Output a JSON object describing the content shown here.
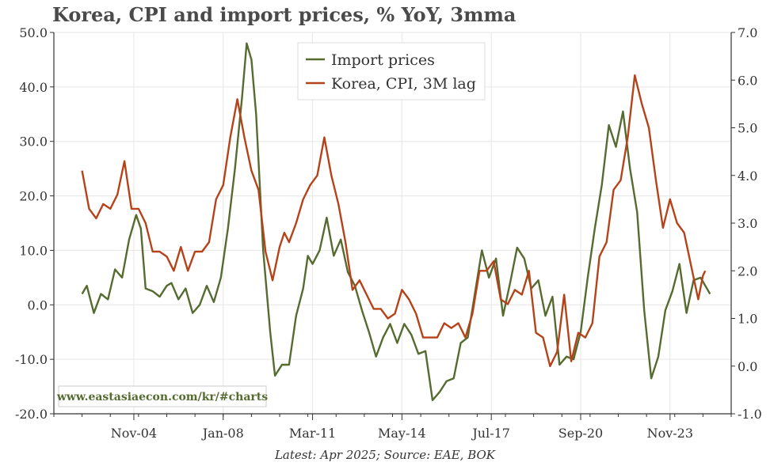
{
  "header": {
    "title": "Korea, CPI and import prices, % YoY, 3mma"
  },
  "footer": {
    "source": "Latest: Apr 2025; Source: EAE, BOK"
  },
  "watermark": {
    "text": "www.eastasiaecon.com/kr/#charts"
  },
  "colors": {
    "import": "#556b2f",
    "cpi": "#b5431a",
    "grid": "#e6e6e6",
    "axis": "#333333"
  },
  "chart_data": {
    "type": "line",
    "title": "Korea, CPI and import prices, % YoY, 3mma",
    "x_ticks": [
      "Nov-04",
      "Jan-08",
      "Mar-11",
      "May-14",
      "Jul-17",
      "Sep-20",
      "Nov-23"
    ],
    "y_left": {
      "lim": [
        -20,
        50
      ],
      "ticks": [
        "-20.0",
        "-10.0",
        "0.0",
        "10.0",
        "20.0",
        "30.0",
        "40.0",
        "50.0"
      ]
    },
    "y_right": {
      "lim": [
        -1,
        7
      ],
      "ticks": [
        "-1.0",
        "0.0",
        "1.0",
        "2.0",
        "3.0",
        "4.0",
        "5.0",
        "6.0",
        "7.0"
      ]
    },
    "legend": {
      "position": "top-center",
      "entries": [
        "Import prices",
        "Korea, CPI, 3M lag"
      ]
    },
    "grid": true,
    "series": [
      {
        "name": "Import prices",
        "axis": "left",
        "points": [
          [
            "2003-01",
            2
          ],
          [
            "2003-03",
            3.5
          ],
          [
            "2003-06",
            -1.5
          ],
          [
            "2003-09",
            2
          ],
          [
            "2003-12",
            1
          ],
          [
            "2004-03",
            6.5
          ],
          [
            "2004-06",
            5
          ],
          [
            "2004-09",
            12
          ],
          [
            "2004-12",
            16.5
          ],
          [
            "2005-02",
            14
          ],
          [
            "2005-04",
            3
          ],
          [
            "2005-07",
            2.5
          ],
          [
            "2005-10",
            1.5
          ],
          [
            "2006-01",
            3.5
          ],
          [
            "2006-03",
            4
          ],
          [
            "2006-06",
            1
          ],
          [
            "2006-09",
            3
          ],
          [
            "2006-12",
            -1.5
          ],
          [
            "2007-03",
            0
          ],
          [
            "2007-06",
            3.5
          ],
          [
            "2007-09",
            0.5
          ],
          [
            "2007-12",
            5
          ],
          [
            "2008-03",
            14
          ],
          [
            "2008-06",
            25
          ],
          [
            "2008-09",
            38
          ],
          [
            "2008-11",
            48
          ],
          [
            "2009-01",
            45
          ],
          [
            "2009-03",
            35
          ],
          [
            "2009-06",
            10
          ],
          [
            "2009-09",
            -5
          ],
          [
            "2009-11",
            -13
          ],
          [
            "2010-02",
            -11
          ],
          [
            "2010-05",
            -11
          ],
          [
            "2010-08",
            -2
          ],
          [
            "2010-11",
            3
          ],
          [
            "2011-01",
            9
          ],
          [
            "2011-03",
            7.5
          ],
          [
            "2011-06",
            10
          ],
          [
            "2011-09",
            16
          ],
          [
            "2011-12",
            9
          ],
          [
            "2012-03",
            12
          ],
          [
            "2012-06",
            6
          ],
          [
            "2012-09",
            3.5
          ],
          [
            "2012-12",
            -1
          ],
          [
            "2013-03",
            -5
          ],
          [
            "2013-06",
            -9.5
          ],
          [
            "2013-09",
            -6
          ],
          [
            "2013-12",
            -3.5
          ],
          [
            "2014-03",
            -7
          ],
          [
            "2014-06",
            -3.5
          ],
          [
            "2014-09",
            -5.5
          ],
          [
            "2014-12",
            -9
          ],
          [
            "2015-03",
            -8.5
          ],
          [
            "2015-06",
            -17.5
          ],
          [
            "2015-09",
            -16
          ],
          [
            "2015-12",
            -14
          ],
          [
            "2016-03",
            -13.5
          ],
          [
            "2016-06",
            -7
          ],
          [
            "2016-09",
            -6
          ],
          [
            "2016-12",
            2
          ],
          [
            "2017-03",
            10
          ],
          [
            "2017-06",
            5
          ],
          [
            "2017-09",
            8.5
          ],
          [
            "2017-12",
            -2
          ],
          [
            "2018-03",
            4
          ],
          [
            "2018-06",
            10.5
          ],
          [
            "2018-09",
            8.5
          ],
          [
            "2018-12",
            3
          ],
          [
            "2019-03",
            4.5
          ],
          [
            "2019-06",
            -2
          ],
          [
            "2019-09",
            1.5
          ],
          [
            "2019-12",
            -11
          ],
          [
            "2020-03",
            -9.5
          ],
          [
            "2020-06",
            -10
          ],
          [
            "2020-09",
            -5
          ],
          [
            "2020-12",
            5
          ],
          [
            "2021-03",
            14
          ],
          [
            "2021-06",
            22
          ],
          [
            "2021-09",
            33
          ],
          [
            "2021-12",
            29
          ],
          [
            "2022-03",
            35.5
          ],
          [
            "2022-06",
            25
          ],
          [
            "2022-09",
            17
          ],
          [
            "2022-12",
            -1
          ],
          [
            "2023-03",
            -13.5
          ],
          [
            "2023-06",
            -9.5
          ],
          [
            "2023-09",
            -1
          ],
          [
            "2023-12",
            2.5
          ],
          [
            "2024-03",
            7.5
          ],
          [
            "2024-06",
            -1.5
          ],
          [
            "2024-09",
            4.5
          ],
          [
            "2024-12",
            5
          ],
          [
            "2025-04",
            2
          ]
        ]
      },
      {
        "name": "Korea, CPI, 3M lag",
        "axis": "right",
        "points": [
          [
            "2003-01",
            4.1
          ],
          [
            "2003-04",
            3.3
          ],
          [
            "2003-07",
            3.1
          ],
          [
            "2003-10",
            3.4
          ],
          [
            "2004-01",
            3.3
          ],
          [
            "2004-04",
            3.6
          ],
          [
            "2004-07",
            4.3
          ],
          [
            "2004-10",
            3.3
          ],
          [
            "2005-01",
            3.3
          ],
          [
            "2005-04",
            3.0
          ],
          [
            "2005-07",
            2.4
          ],
          [
            "2005-10",
            2.4
          ],
          [
            "2006-01",
            2.3
          ],
          [
            "2006-04",
            2.0
          ],
          [
            "2006-07",
            2.5
          ],
          [
            "2006-10",
            2.0
          ],
          [
            "2007-01",
            2.4
          ],
          [
            "2007-04",
            2.4
          ],
          [
            "2007-07",
            2.6
          ],
          [
            "2007-10",
            3.5
          ],
          [
            "2008-01",
            3.8
          ],
          [
            "2008-04",
            4.8
          ],
          [
            "2008-07",
            5.6
          ],
          [
            "2008-10",
            4.8
          ],
          [
            "2009-01",
            4.1
          ],
          [
            "2009-04",
            3.7
          ],
          [
            "2009-07",
            2.4
          ],
          [
            "2009-10",
            1.8
          ],
          [
            "2010-01",
            2.5
          ],
          [
            "2010-03",
            2.8
          ],
          [
            "2010-05",
            2.6
          ],
          [
            "2010-08",
            3.0
          ],
          [
            "2010-11",
            3.5
          ],
          [
            "2011-02",
            3.8
          ],
          [
            "2011-05",
            4.0
          ],
          [
            "2011-08",
            4.8
          ],
          [
            "2011-11",
            4.0
          ],
          [
            "2012-02",
            3.4
          ],
          [
            "2012-05",
            2.6
          ],
          [
            "2012-08",
            1.6
          ],
          [
            "2012-11",
            1.8
          ],
          [
            "2013-02",
            1.5
          ],
          [
            "2013-05",
            1.2
          ],
          [
            "2013-08",
            1.2
          ],
          [
            "2013-11",
            1.0
          ],
          [
            "2014-02",
            1.1
          ],
          [
            "2014-05",
            1.6
          ],
          [
            "2014-08",
            1.4
          ],
          [
            "2014-11",
            1.1
          ],
          [
            "2015-02",
            0.6
          ],
          [
            "2015-05",
            0.6
          ],
          [
            "2015-08",
            0.6
          ],
          [
            "2015-11",
            0.9
          ],
          [
            "2016-02",
            0.8
          ],
          [
            "2016-05",
            0.9
          ],
          [
            "2016-08",
            0.6
          ],
          [
            "2016-11",
            1.1
          ],
          [
            "2017-02",
            2.0
          ],
          [
            "2017-05",
            2.0
          ],
          [
            "2017-08",
            2.2
          ],
          [
            "2017-11",
            1.4
          ],
          [
            "2018-02",
            1.3
          ],
          [
            "2018-05",
            1.6
          ],
          [
            "2018-08",
            1.5
          ],
          [
            "2018-11",
            2.0
          ],
          [
            "2019-02",
            0.7
          ],
          [
            "2019-05",
            0.6
          ],
          [
            "2019-08",
            0.0
          ],
          [
            "2019-11",
            0.3
          ],
          [
            "2020-02",
            1.5
          ],
          [
            "2020-05",
            0.1
          ],
          [
            "2020-08",
            0.7
          ],
          [
            "2020-11",
            0.6
          ],
          [
            "2021-02",
            0.9
          ],
          [
            "2021-05",
            2.3
          ],
          [
            "2021-08",
            2.6
          ],
          [
            "2021-11",
            3.7
          ],
          [
            "2022-02",
            3.9
          ],
          [
            "2022-05",
            4.8
          ],
          [
            "2022-08",
            6.1
          ],
          [
            "2022-11",
            5.5
          ],
          [
            "2023-02",
            5.0
          ],
          [
            "2023-05",
            3.9
          ],
          [
            "2023-08",
            2.9
          ],
          [
            "2023-11",
            3.5
          ],
          [
            "2024-02",
            3.0
          ],
          [
            "2024-05",
            2.8
          ],
          [
            "2024-08",
            2.1
          ],
          [
            "2024-11",
            1.4
          ],
          [
            "2025-01",
            1.9
          ],
          [
            "2025-02",
            2.0
          ]
        ]
      }
    ]
  }
}
